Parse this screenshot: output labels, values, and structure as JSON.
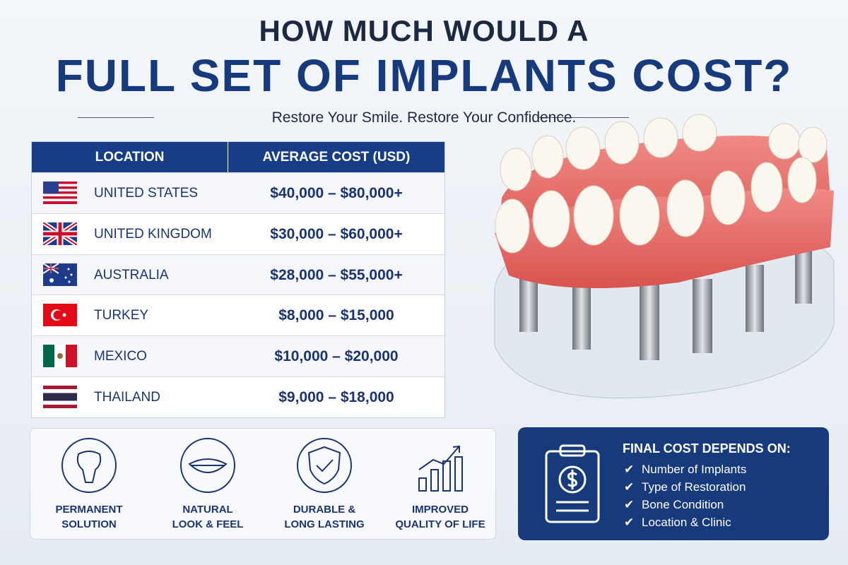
{
  "header": {
    "title_line1": "HOW MUCH WOULD A",
    "title_line2": "FULL SET OF IMPLANTS COST?",
    "subtitle": "Restore Your Smile. Restore Your Confidence."
  },
  "table": {
    "headers": [
      "LOCATION",
      "AVERAGE COST (USD)"
    ],
    "rows": [
      [
        "UNITED STATES",
        "$40,000 – $80,000+"
      ],
      [
        "UNITED KINGDOM",
        "$30,000 – $60,000+"
      ],
      [
        "AUSTRALIA",
        "$28,000 – $55,000+"
      ],
      [
        "TURKEY",
        "$8,000 – $15,000"
      ],
      [
        "MEXICO",
        "$10,000 – $20,000"
      ],
      [
        "THAILAND",
        "$9,000 – $18,000"
      ]
    ]
  },
  "benefits": [
    {
      "lines": [
        "PERMANENT",
        "SOLUTION"
      ]
    },
    {
      "lines": [
        "NATURAL",
        "LOOK & FEEL"
      ]
    },
    {
      "lines": [
        "DURABLE &",
        "LONG LASTING"
      ]
    },
    {
      "lines": [
        "IMPROVED",
        "QUALITY OF LIFE"
      ]
    }
  ],
  "factors": {
    "title": "FINAL COST DEPENDS ON:",
    "items": [
      "Number of Implants",
      "Type of Restoration",
      "Bone Condition",
      "Location & Clinic"
    ]
  }
}
